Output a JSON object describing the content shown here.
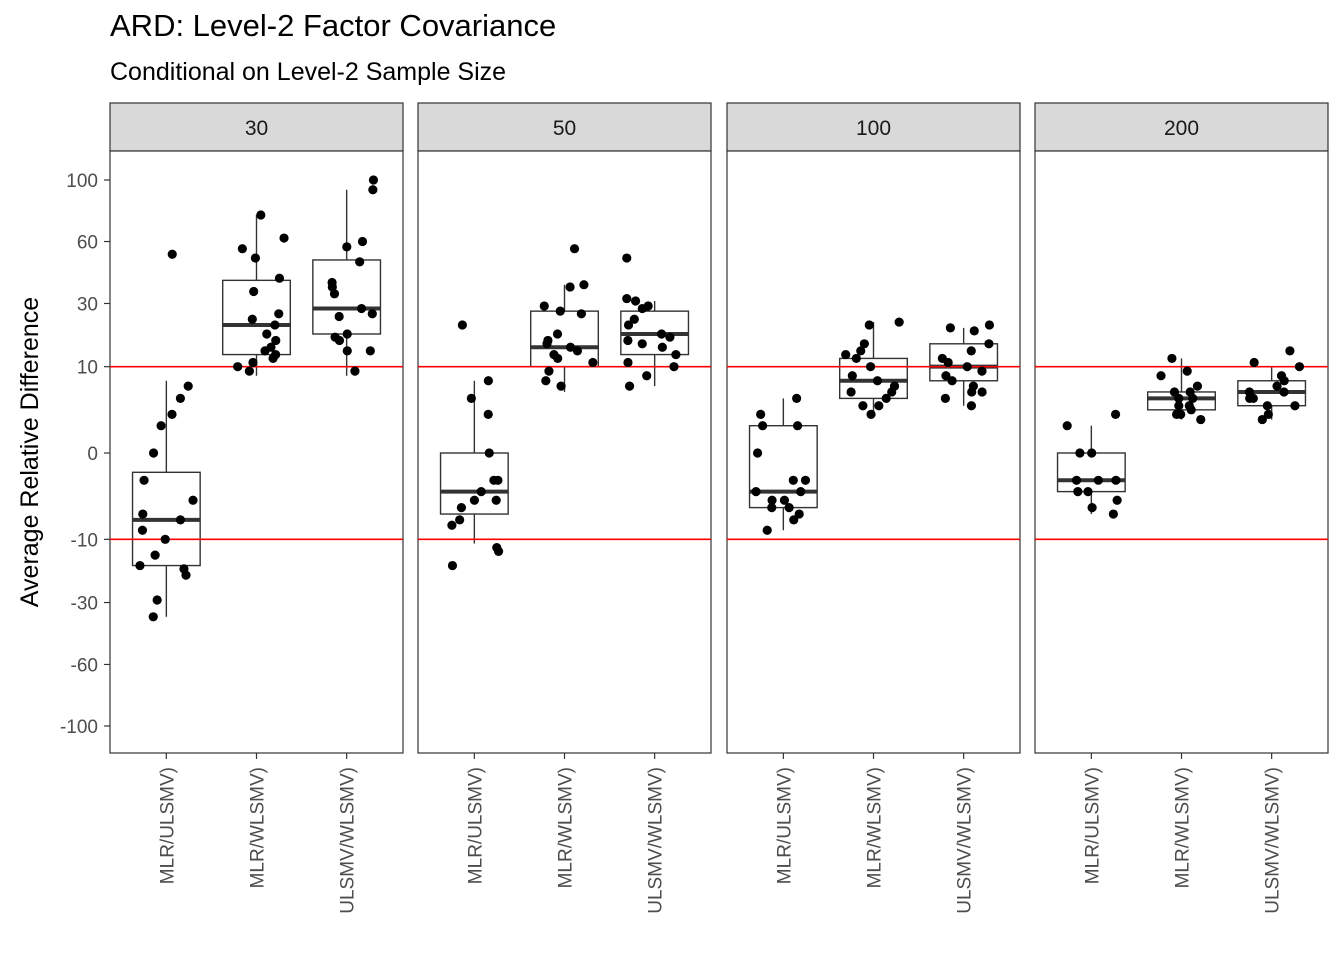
{
  "title": "ARD: Level-2 Factor Covariance",
  "subtitle": "Conditional on Level-2 Sample Size",
  "colors": {
    "reference_line": "#ff0000",
    "strip_fill": "#d9d9d9",
    "point": "#000000"
  },
  "chart_data": {
    "type": "box",
    "ylabel": "Average Relative Difference",
    "xlabel": "",
    "y_scale": "signed square root",
    "ylim": [
      -110,
      110
    ],
    "y_ticks": [
      100,
      60,
      30,
      10,
      0,
      -10,
      -30,
      -60,
      -100
    ],
    "reference_lines": [
      10,
      -10
    ],
    "grid": false,
    "categories": [
      "MLR/ULSMV)",
      "MLR/WLSMV)",
      "ULSMV/WLSMV)"
    ],
    "panels": [
      {
        "label": "30",
        "boxes": [
          {
            "category": "MLR/ULSMV)",
            "q1": -17,
            "median": -6,
            "q3": -0.5,
            "lower": -36,
            "upper": 7,
            "points": [
              53,
              6,
              4,
              2,
              1,
              0,
              -1,
              -3,
              -5,
              -6,
              -8,
              -10,
              -14,
              -17,
              -18,
              -20,
              -29,
              -36
            ]
          },
          {
            "category": "MLR/WLSMV)",
            "q1": 13,
            "median": 22,
            "q3": 40,
            "lower": 8,
            "upper": 76,
            "points": [
              76,
              62,
              56,
              51,
              41,
              35,
              26,
              24,
              22,
              19,
              17,
              15,
              14,
              13,
              12,
              11,
              10,
              9
            ]
          },
          {
            "category": "ULSMV/WLSMV)",
            "q1": 19,
            "median": 28,
            "q3": 50,
            "lower": 8,
            "upper": 93,
            "points": [
              100,
              93,
              60,
              57,
              49,
              39,
              37,
              34,
              28,
              26,
              25,
              19,
              18,
              17,
              14,
              14,
              9
            ]
          }
        ]
      },
      {
        "label": "50",
        "boxes": [
          {
            "category": "MLR/ULSMV)",
            "q1": -5,
            "median": -2,
            "q3": 0,
            "lower": -11,
            "upper": 7,
            "points": [
              22,
              7,
              4,
              2,
              0,
              -1,
              -1,
              -2,
              -3,
              -3,
              -4,
              -6,
              -7,
              -12,
              -13,
              -17
            ]
          },
          {
            "category": "MLR/WLSMV)",
            "q1": 10,
            "median": 15,
            "q3": 27,
            "lower": 5,
            "upper": 38,
            "points": [
              56,
              38,
              37,
              29,
              27,
              26,
              19,
              17,
              16,
              15,
              14,
              13,
              12,
              11,
              9,
              7,
              6
            ]
          },
          {
            "category": "ULSMV/WLSMV)",
            "q1": 13,
            "median": 19,
            "q3": 27,
            "lower": 6,
            "upper": 31,
            "points": [
              51,
              32,
              31,
              29,
              28,
              24,
              22,
              19,
              18,
              17,
              16,
              15,
              13,
              11,
              10,
              8,
              6
            ]
          }
        ]
      },
      {
        "label": "100",
        "boxes": [
          {
            "category": "MLR/ULSMV)",
            "q1": -4,
            "median": -2,
            "q3": 1,
            "lower": -8,
            "upper": 4,
            "points": [
              4,
              2,
              1,
              1,
              0,
              -1,
              -1,
              -2,
              -2,
              -3,
              -3,
              -4,
              -4,
              -5,
              -6,
              -8
            ]
          },
          {
            "category": "MLR/WLSMV)",
            "q1": 4,
            "median": 7,
            "q3": 12,
            "lower": 2,
            "upper": 23,
            "points": [
              23,
              22,
              16,
              14,
              13,
              12,
              10,
              8,
              7,
              6,
              5,
              5,
              4,
              3,
              3,
              2
            ]
          },
          {
            "category": "ULSMV/WLSMV)",
            "q1": 7,
            "median": 10,
            "q3": 16,
            "lower": 3,
            "upper": 21,
            "points": [
              22,
              21,
              20,
              16,
              14,
              12,
              11,
              10,
              9,
              8,
              7,
              6,
              5,
              5,
              4,
              3
            ]
          }
        ]
      },
      {
        "label": "200",
        "boxes": [
          {
            "category": "MLR/ULSMV)",
            "q1": -2,
            "median": -1,
            "q3": 0,
            "lower": -5,
            "upper": 1,
            "points": [
              2,
              1,
              0,
              0,
              -1,
              -1,
              -1,
              -2,
              -2,
              -3,
              -4,
              -5
            ]
          },
          {
            "category": "MLR/WLSMV)",
            "q1": 2.5,
            "median": 4,
            "q3": 5,
            "lower": 1.5,
            "upper": 12,
            "points": [
              12,
              9,
              8,
              6,
              5,
              5,
              4,
              4,
              3,
              3,
              2.5,
              2,
              2,
              1.5
            ]
          },
          {
            "category": "ULSMV/WLSMV)",
            "q1": 3,
            "median": 5,
            "q3": 7,
            "lower": 1.5,
            "upper": 10,
            "points": [
              14,
              11,
              10,
              8,
              7,
              6,
              5,
              5,
              4,
              4,
              3,
              3,
              2,
              1.5
            ]
          }
        ]
      }
    ]
  }
}
